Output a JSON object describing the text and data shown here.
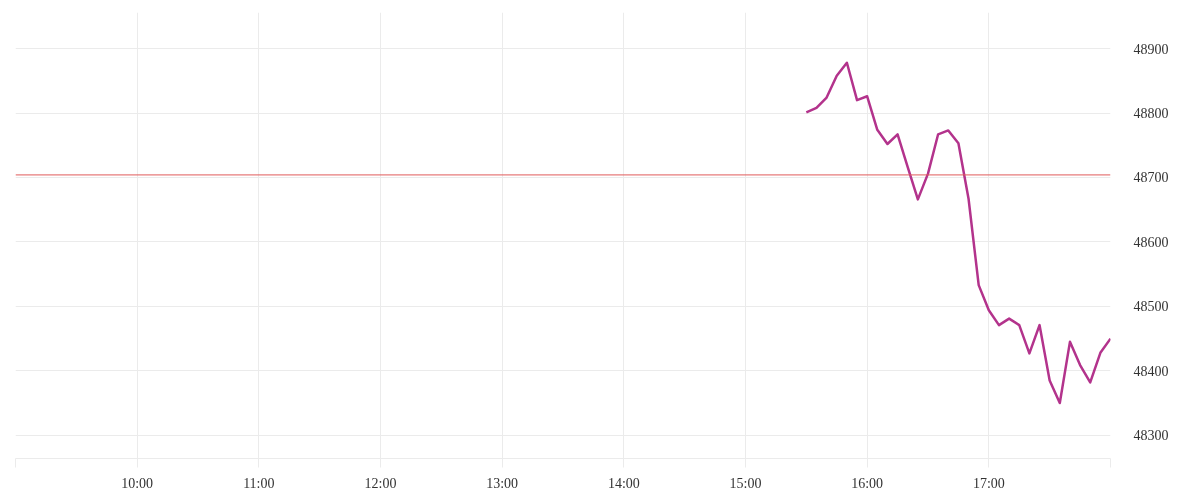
{
  "chart_data": {
    "type": "line",
    "x": [
      15.5,
      15.5833,
      15.6667,
      15.75,
      15.8333,
      15.9167,
      16,
      16.0833,
      16.1667,
      16.25,
      16.3333,
      16.4167,
      16.5,
      16.5833,
      16.6667,
      16.75,
      16.8333,
      16.9167,
      17,
      17.0833,
      17.1667,
      17.25,
      17.3333,
      17.4167,
      17.5,
      17.5833,
      17.6667,
      17.75,
      17.8333,
      17.9167,
      18
    ],
    "series": [
      {
        "color": "#b3338c",
        "values": [
          48801,
          48808,
          48824,
          48858,
          48878,
          48820,
          48826,
          48774,
          48752,
          48767,
          48716,
          48666,
          48706,
          48767,
          48773,
          48753,
          48667,
          48533,
          48494,
          48471,
          48481,
          48471,
          48427,
          48471,
          48385,
          48350,
          48445,
          48409,
          48382,
          48428,
          48450
        ]
      }
    ],
    "xlim": [
      9,
      18
    ],
    "ylim": [
      48264,
      48956
    ],
    "xticks": [
      {
        "value": 9,
        "label": null
      },
      {
        "value": 10,
        "label": "10:00"
      },
      {
        "value": 11,
        "label": "11:00"
      },
      {
        "value": 12,
        "label": "12:00"
      },
      {
        "value": 13,
        "label": "13:00"
      },
      {
        "value": 14,
        "label": "14:00"
      },
      {
        "value": 15,
        "label": "15:00"
      },
      {
        "value": 16,
        "label": "16:00"
      },
      {
        "value": 17,
        "label": "17:00"
      },
      {
        "value": 18,
        "label": null
      }
    ],
    "yticks": [
      48300,
      48400,
      48500,
      48600,
      48700,
      48800,
      48900
    ],
    "ref_lines": [
      {
        "axis": "y",
        "value": 48704,
        "color": "#e05a5a"
      }
    ],
    "grid": true,
    "marker": "none",
    "line_style": "solid"
  }
}
